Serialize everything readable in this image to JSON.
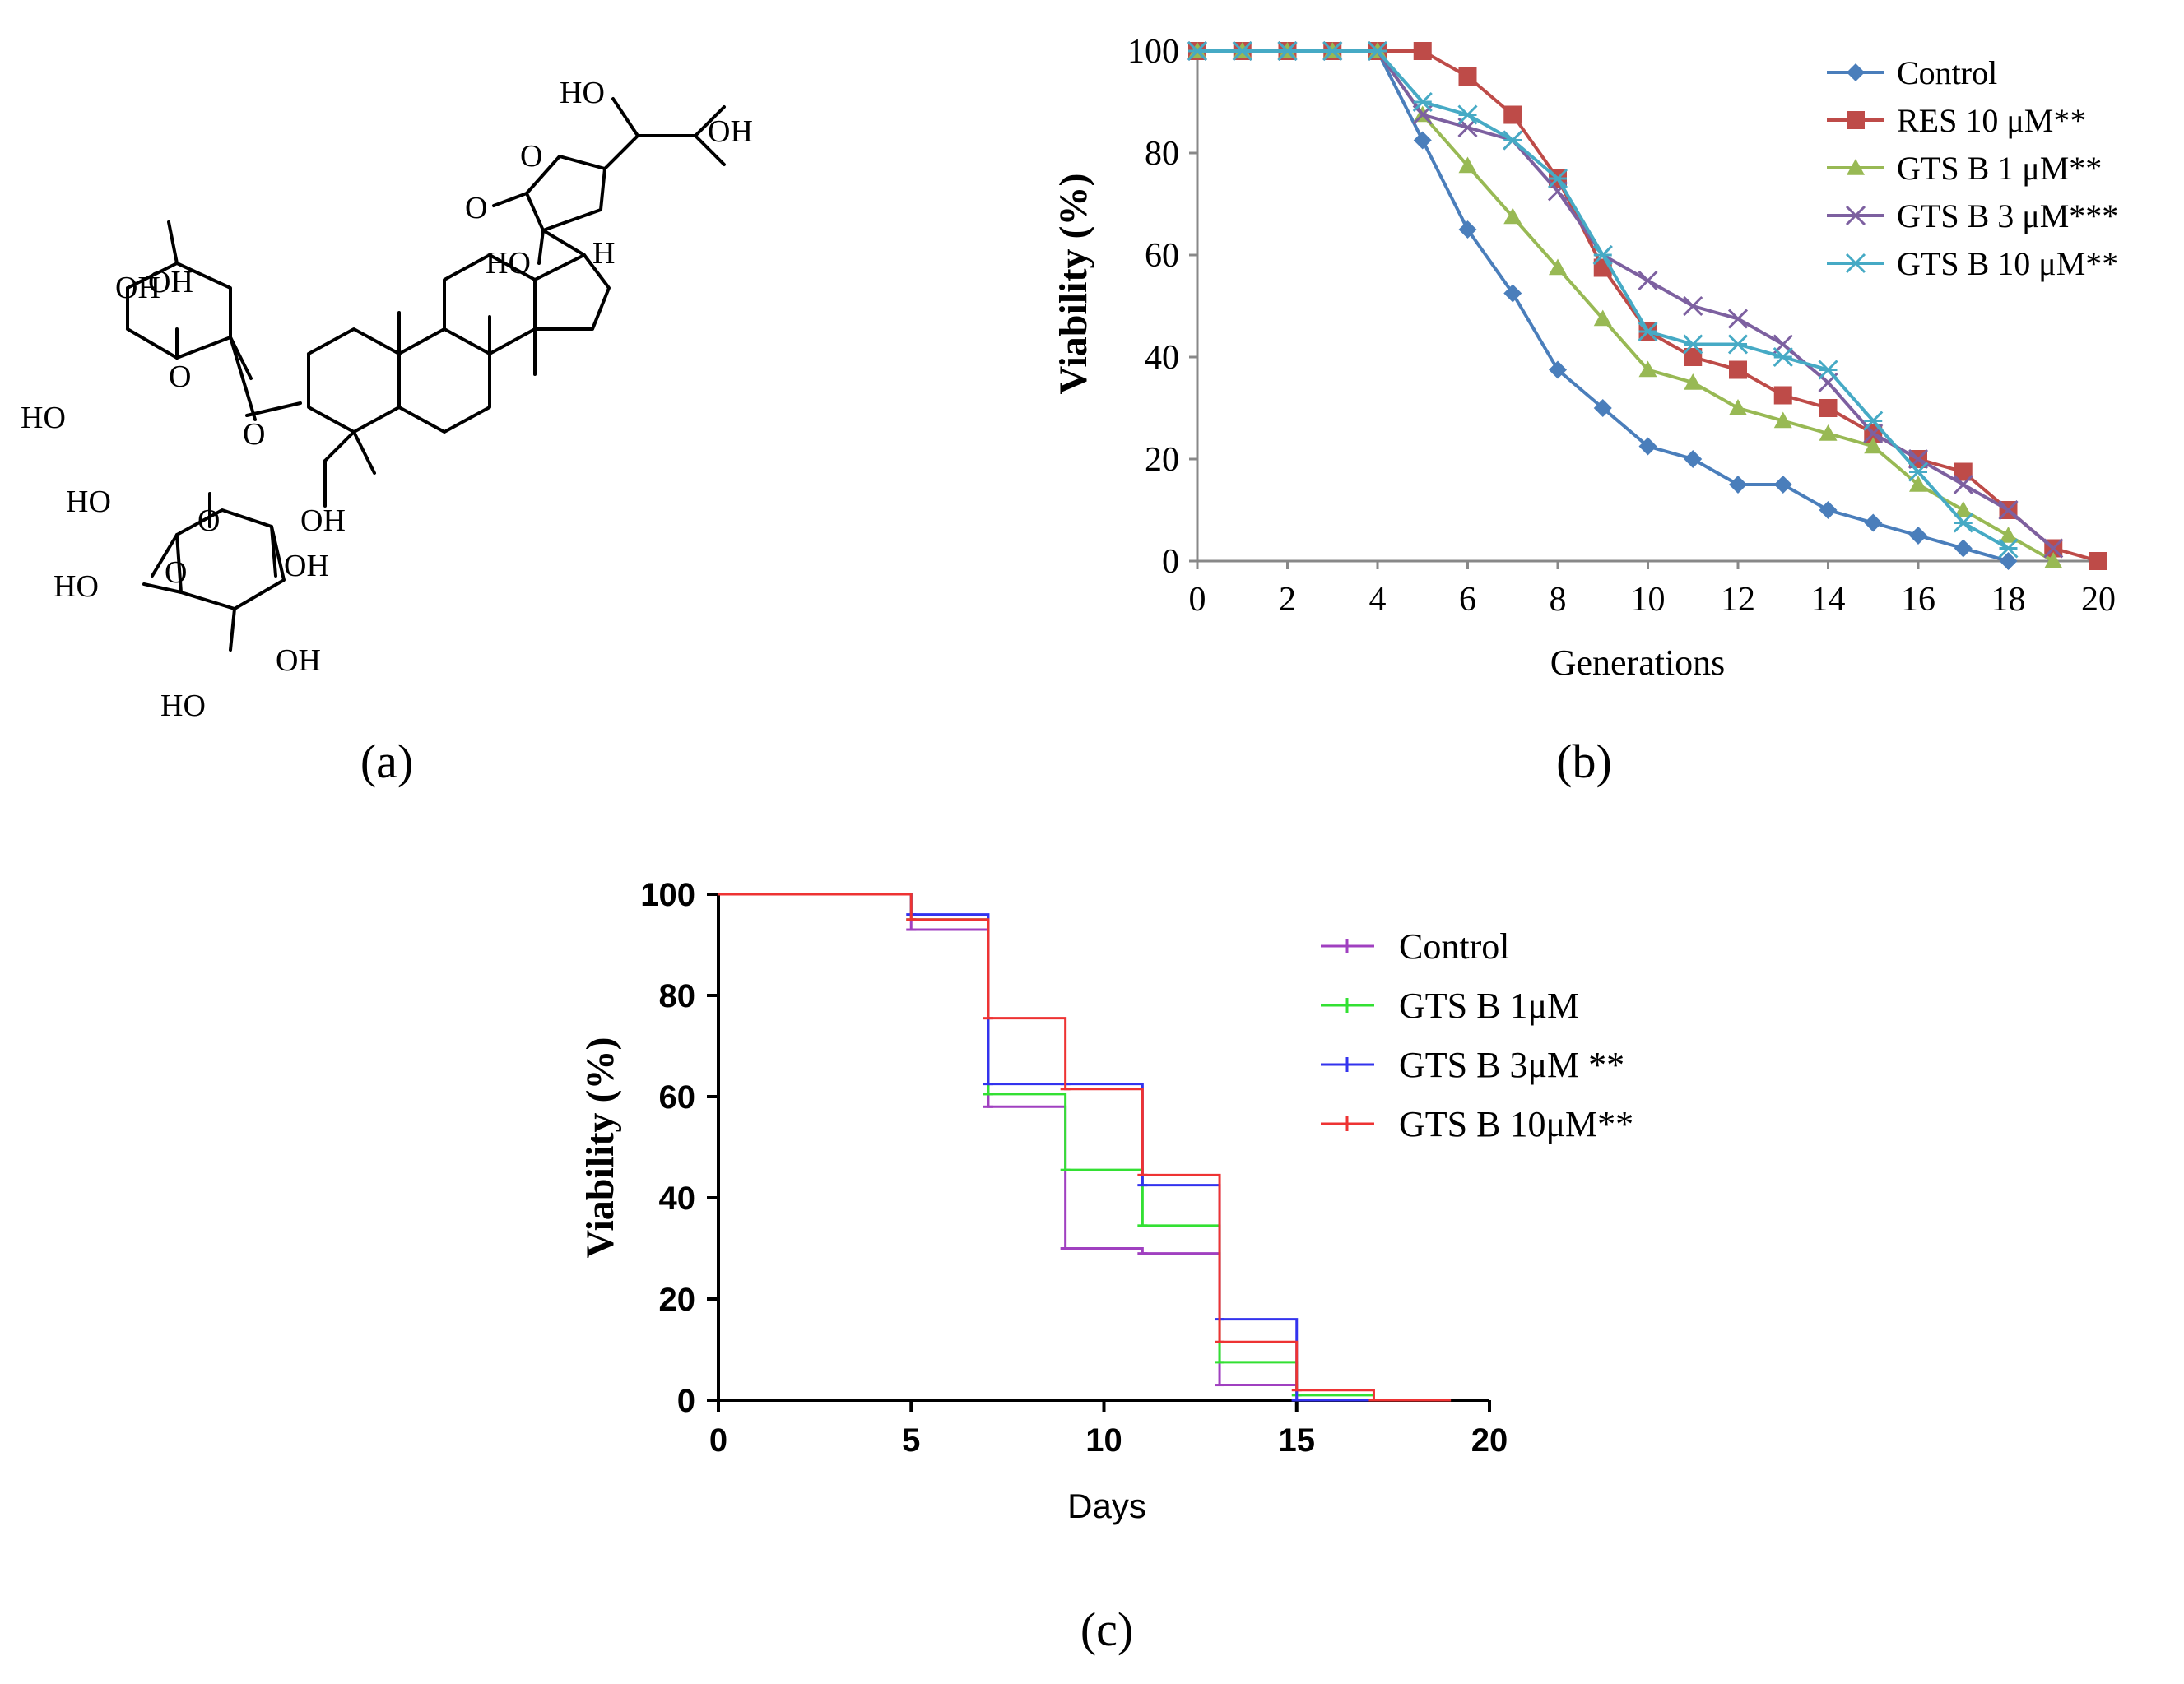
{
  "panels": {
    "a": {
      "label": "(a)"
    },
    "b": {
      "label": "(b)"
    },
    "c": {
      "label": "(c)"
    }
  },
  "structure": {
    "labels": [
      "HO",
      "OH",
      "O",
      "O",
      "HO",
      "H",
      "OH",
      "O",
      "HO",
      "HO",
      "O",
      "OH",
      "O",
      "HO",
      "OH",
      "OH",
      "HO",
      "O",
      "OH"
    ],
    "description_name": "GTS B molecular structure"
  },
  "chart_data": [
    {
      "id": "b",
      "type": "line",
      "title": "",
      "xlabel": "Generations",
      "ylabel": "Viability (%)",
      "xlim": [
        0,
        20
      ],
      "ylim": [
        0,
        100
      ],
      "xticks": [
        0,
        2,
        4,
        6,
        8,
        10,
        12,
        14,
        16,
        18,
        20
      ],
      "yticks": [
        0,
        20,
        40,
        60,
        80,
        100
      ],
      "grid": false,
      "legend_position": "top-right",
      "series": [
        {
          "name": "Control",
          "marker": "diamond",
          "color": "#4a7ebb",
          "x": [
            0,
            1,
            2,
            3,
            4,
            5,
            6,
            7,
            8,
            9,
            10,
            11,
            12,
            13,
            14,
            15,
            16,
            17,
            18
          ],
          "values": [
            100,
            100,
            100,
            100,
            100,
            82.5,
            65,
            52.5,
            37.5,
            30,
            22.5,
            20,
            15,
            15,
            10,
            7.5,
            5,
            2.5,
            0
          ]
        },
        {
          "name": "RES 10 μM**",
          "marker": "square",
          "color": "#be4b48",
          "x": [
            0,
            1,
            2,
            3,
            4,
            5,
            6,
            7,
            8,
            9,
            10,
            11,
            12,
            13,
            14,
            15,
            16,
            17,
            18,
            19,
            20
          ],
          "values": [
            100,
            100,
            100,
            100,
            100,
            100,
            95,
            87.5,
            75,
            57.5,
            45,
            40,
            37.5,
            32.5,
            30,
            25,
            20,
            17.5,
            10,
            2.5,
            0
          ]
        },
        {
          "name": "GTS B  1 μM**",
          "marker": "triangle",
          "color": "#98b954",
          "x": [
            0,
            1,
            2,
            3,
            4,
            5,
            6,
            7,
            8,
            9,
            10,
            11,
            12,
            13,
            14,
            15,
            16,
            17,
            18,
            19
          ],
          "values": [
            100,
            100,
            100,
            100,
            100,
            87.5,
            77.5,
            67.5,
            57.5,
            47.5,
            37.5,
            35,
            30,
            27.5,
            25,
            22.5,
            15,
            10,
            5,
            0
          ]
        },
        {
          "name": "GTS B  3 μM***",
          "marker": "x",
          "color": "#7d60a0",
          "x": [
            0,
            1,
            2,
            3,
            4,
            5,
            6,
            7,
            8,
            9,
            10,
            11,
            12,
            13,
            14,
            15,
            16,
            17,
            18,
            19
          ],
          "values": [
            100,
            100,
            100,
            100,
            100,
            87.5,
            85,
            82.5,
            72.5,
            60,
            55,
            50,
            47.5,
            42.5,
            35,
            25,
            20,
            15,
            10,
            2.5
          ]
        },
        {
          "name": "GTS B  10 μM**",
          "marker": "asterisk",
          "color": "#46aac5",
          "x": [
            0,
            1,
            2,
            3,
            4,
            5,
            6,
            7,
            8,
            9,
            10,
            11,
            12,
            13,
            14,
            15,
            16,
            17,
            18
          ],
          "values": [
            100,
            100,
            100,
            100,
            100,
            90,
            87.5,
            82.5,
            75,
            60,
            45,
            42.5,
            42.5,
            40,
            37.5,
            27.5,
            17.5,
            7.5,
            2.5
          ]
        }
      ]
    },
    {
      "id": "c",
      "type": "line",
      "title": "",
      "xlabel": "Days",
      "ylabel": "Viability (%)",
      "xlim": [
        0,
        20
      ],
      "ylim": [
        0,
        100
      ],
      "xticks": [
        0,
        5,
        10,
        15,
        20
      ],
      "yticks": [
        0,
        20,
        40,
        60,
        80,
        100
      ],
      "grid": false,
      "legend_position": "right",
      "step": true,
      "series": [
        {
          "name": "Control",
          "color": "#a040c0",
          "x": [
            0,
            5,
            7,
            9,
            11,
            13,
            15
          ],
          "values": [
            100,
            93,
            58,
            30,
            29,
            3,
            0
          ]
        },
        {
          "name": "GTS B 1μM",
          "color": "#33e033",
          "x": [
            0,
            5,
            7,
            9,
            11,
            13,
            15
          ],
          "values": [
            100,
            95,
            60.5,
            45.5,
            34.5,
            7.5,
            1
          ]
        },
        {
          "name": "GTS B 3μM **",
          "color": "#3333ee",
          "x": [
            0,
            5,
            7,
            9,
            11,
            13,
            15
          ],
          "values": [
            100,
            96,
            62.5,
            62.5,
            42.5,
            16,
            0
          ]
        },
        {
          "name": "GTS B 10μM**",
          "color": "#ee3333",
          "x": [
            0,
            5,
            7,
            9,
            11,
            13,
            15,
            17
          ],
          "values": [
            100,
            95,
            75.5,
            61.5,
            44.5,
            11.5,
            2,
            0
          ]
        }
      ]
    }
  ]
}
